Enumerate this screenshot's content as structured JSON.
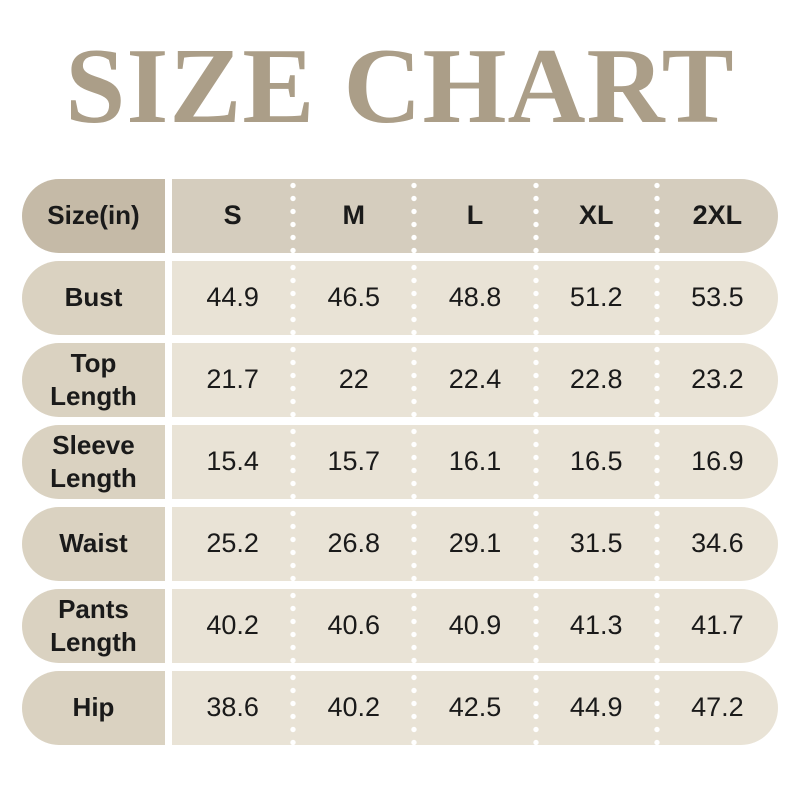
{
  "title": "SIZE CHART",
  "theme": {
    "title_color": "#ab9e88",
    "header_label_bg": "#c5baa7",
    "header_values_bg": "#d5cdbe",
    "row_label_bg": "#dad2c1",
    "row_values_bg": "#e9e3d6",
    "text_color": "#1a1a1a",
    "dot_color": "#ffffff",
    "page_bg": "#ffffff"
  },
  "chart_data": {
    "type": "table",
    "title": "SIZE CHART",
    "unit_label": "Size(in)",
    "columns": [
      "Size(in)",
      "S",
      "M",
      "L",
      "XL",
      "2XL"
    ],
    "rows": [
      {
        "label": "Bust",
        "values": [
          "44.9",
          "46.5",
          "48.8",
          "51.2",
          "53.5"
        ]
      },
      {
        "label": "Top Length",
        "values": [
          "21.7",
          "22",
          "22.4",
          "22.8",
          "23.2"
        ]
      },
      {
        "label": "Sleeve Length",
        "values": [
          "15.4",
          "15.7",
          "16.1",
          "16.5",
          "16.9"
        ]
      },
      {
        "label": "Waist",
        "values": [
          "25.2",
          "26.8",
          "29.1",
          "31.5",
          "34.6"
        ]
      },
      {
        "label": "Pants Length",
        "values": [
          "40.2",
          "40.6",
          "40.9",
          "41.3",
          "41.7"
        ]
      },
      {
        "label": "Hip",
        "values": [
          "38.6",
          "40.2",
          "42.5",
          "44.9",
          "47.2"
        ]
      }
    ]
  }
}
